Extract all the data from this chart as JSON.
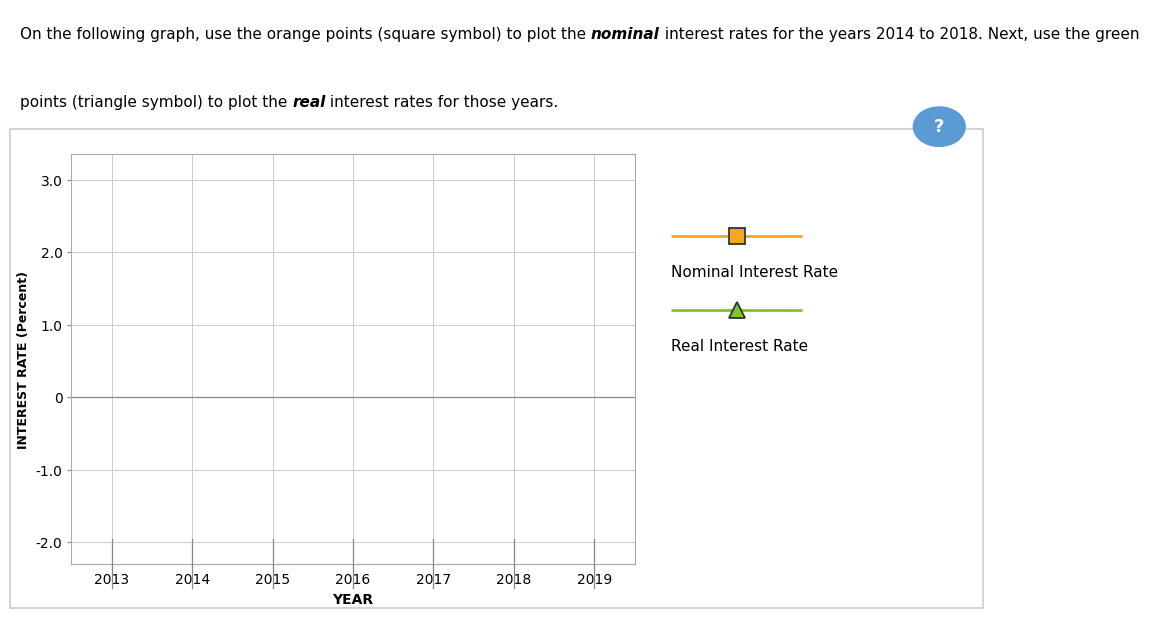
{
  "xlabel": "YEAR",
  "ylabel": "INTEREST RATE (Percent)",
  "xlim": [
    2012.5,
    2019.5
  ],
  "ylim": [
    -2.3,
    3.35
  ],
  "yticks": [
    -2.0,
    -1.0,
    0,
    1.0,
    2.0,
    3.0
  ],
  "xticks": [
    2013,
    2014,
    2015,
    2016,
    2017,
    2018,
    2019
  ],
  "nominal_color": "#F5A623",
  "nominal_label": "Nominal Interest Rate",
  "real_color": "#7DC52A",
  "real_label": "Real Interest Rate",
  "grid_color": "#cccccc",
  "line1_plain1": "On the following graph, use the orange points (square symbol) to plot the ",
  "line1_bold": "nominal",
  "line1_plain2": " interest rates for the years 2014 to 2018. Next, use the green",
  "line2_plain1": "points (triangle symbol) to plot the ",
  "line2_bold": "real",
  "line2_plain2": " interest rates for those years."
}
